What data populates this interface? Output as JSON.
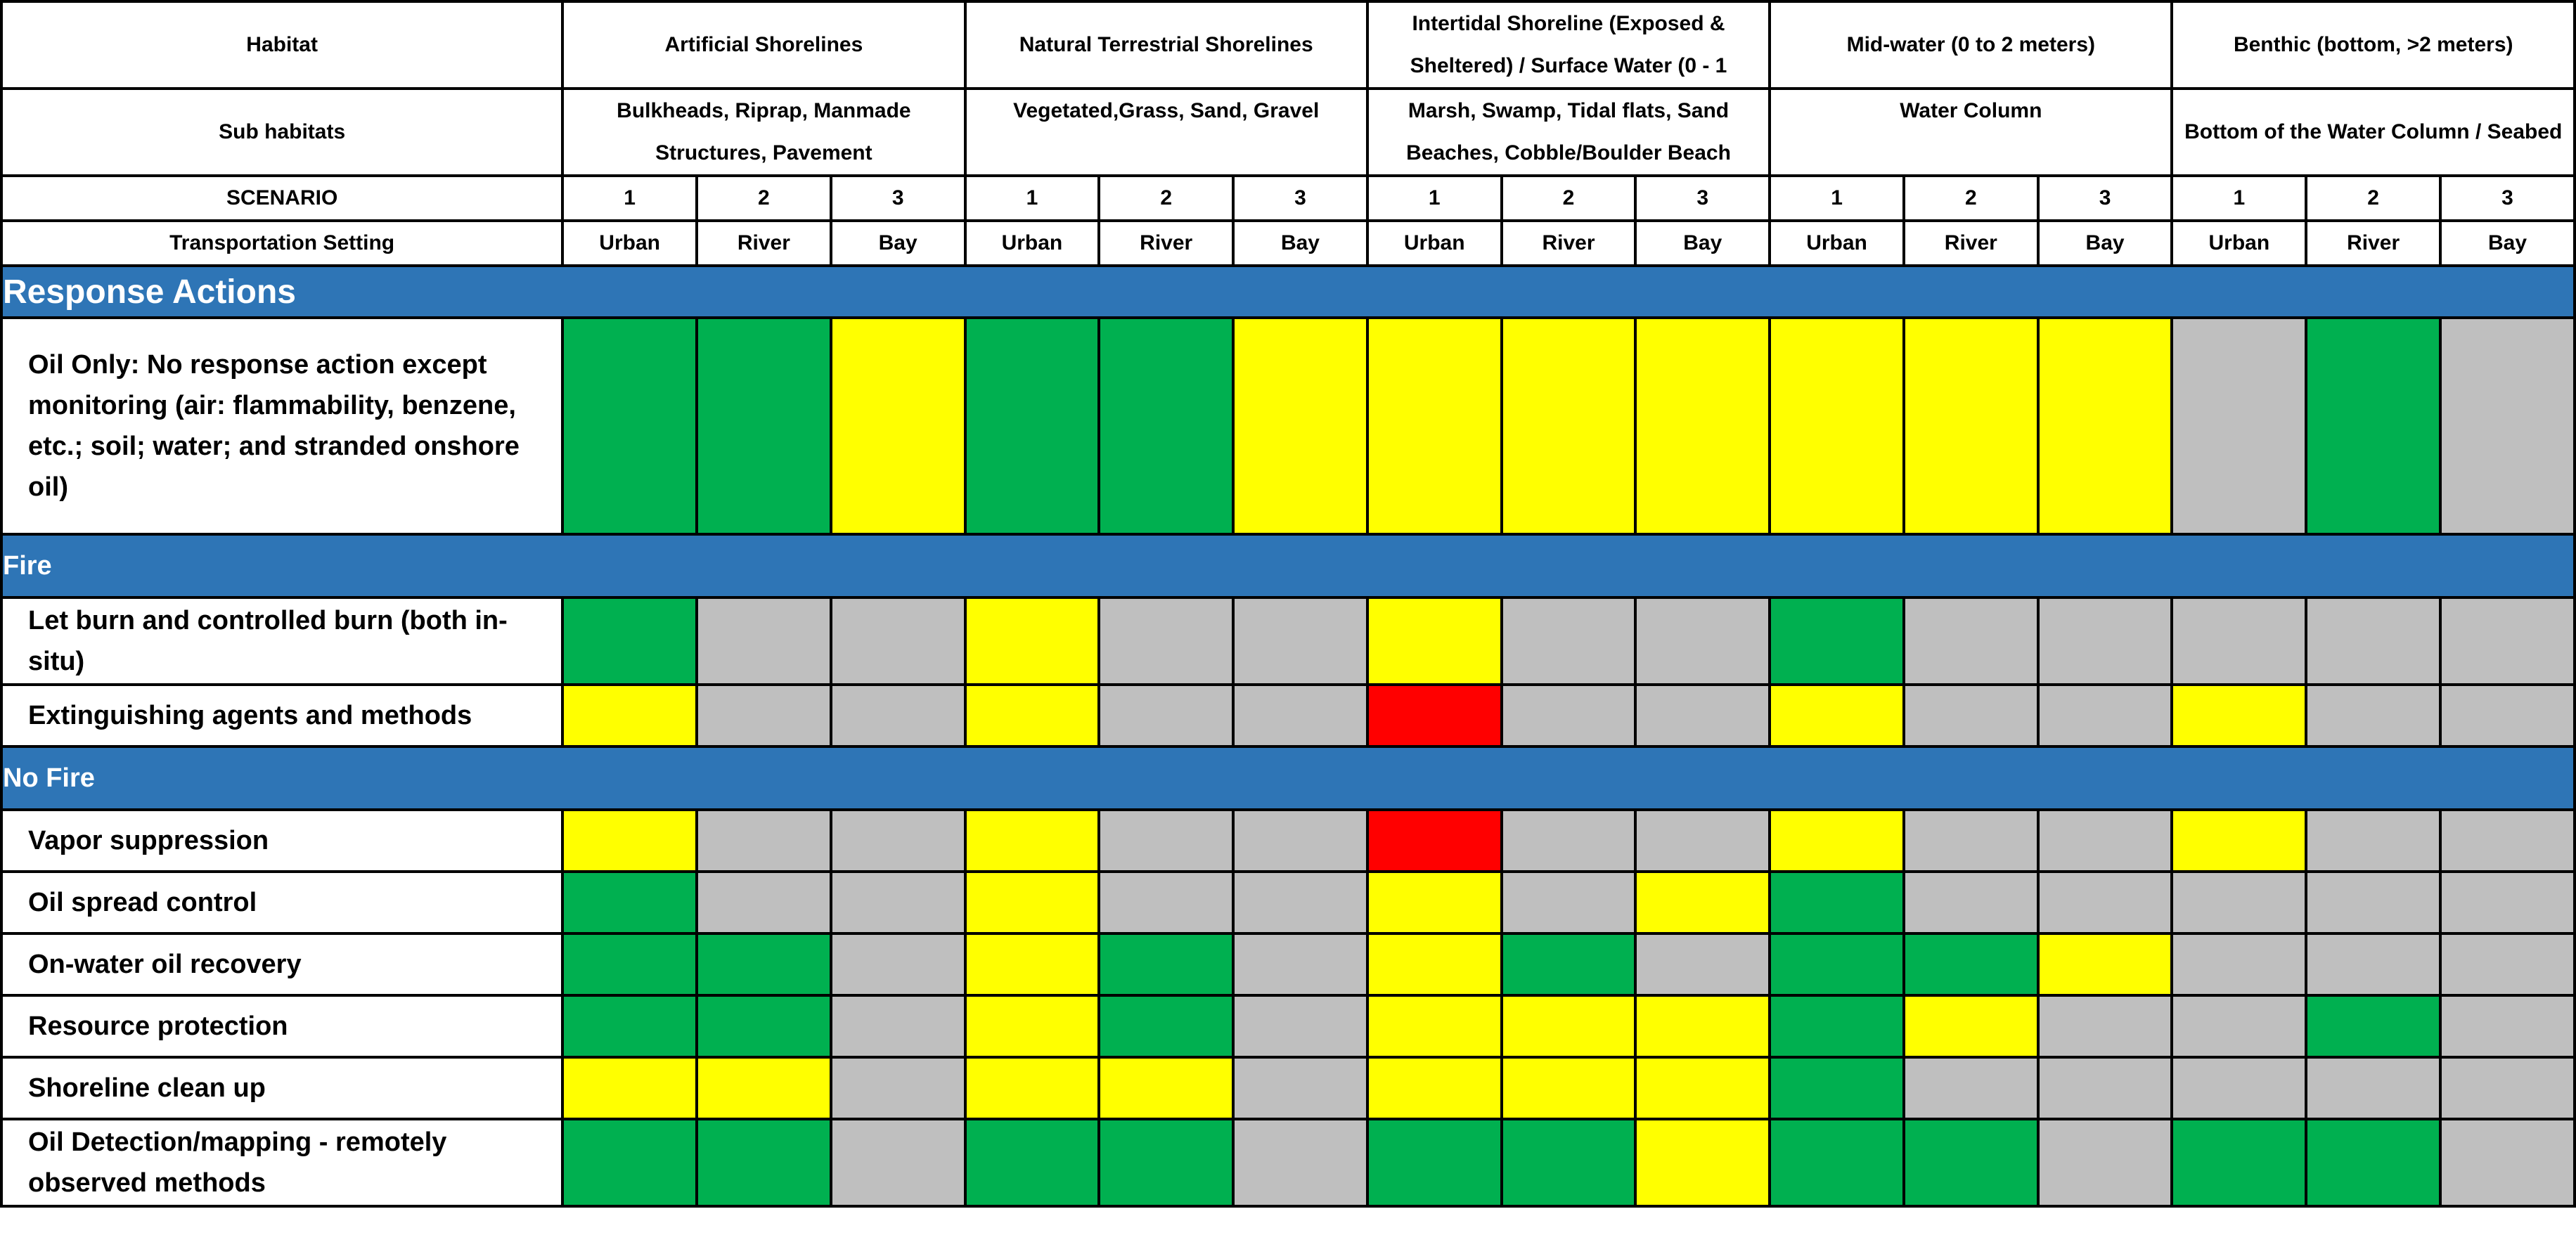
{
  "colors": {
    "green": "#00B050",
    "yellow": "#FFFF00",
    "gray": "#BFBFBF",
    "red": "#FF0000",
    "section_blue": "#2E75B6"
  },
  "header": {
    "habitat_label": "Habitat",
    "sub_habitats_label": "Sub habitats",
    "scenario_label": "SCENARIO",
    "transport_label": "Transportation Setting",
    "habitats": [
      {
        "name": "Artificial Shorelines",
        "sub": "Bulkheads, Riprap, Manmade Structures, Pavement"
      },
      {
        "name": "Natural Terrestrial Shorelines",
        "sub": "Vegetated,Grass, Sand, Gravel"
      },
      {
        "name": "Intertidal Shoreline (Exposed & Sheltered) / Surface Water (0 - 1",
        "sub": "Marsh, Swamp, Tidal flats, Sand Beaches, Cobble/Boulder Beach"
      },
      {
        "name": "Mid-water (0 to 2 meters)",
        "sub": "Water Column"
      },
      {
        "name": "Benthic (bottom, >2 meters)",
        "sub": "Bottom of the Water Column / Seabed"
      }
    ],
    "scenarios": [
      "1",
      "2",
      "3",
      "1",
      "2",
      "3",
      "1",
      "2",
      "3",
      "1",
      "2",
      "3",
      "1",
      "2",
      "3"
    ],
    "settings": [
      "Urban",
      "River",
      "Bay",
      "Urban",
      "River",
      "Bay",
      "Urban",
      "River",
      "Bay",
      "Urban",
      "River",
      "Bay",
      "Urban",
      "River",
      "Bay"
    ]
  },
  "sections": [
    {
      "title": "Response Actions",
      "style": "big",
      "rows": [
        {
          "label": "Oil Only: No response action except monitoring (air: flammability, benzene, etc.; soil;  water; and stranded onshore oil)",
          "cells": [
            "green",
            "green",
            "yellow",
            "green",
            "green",
            "yellow",
            "yellow",
            "yellow",
            "yellow",
            "yellow",
            "yellow",
            "yellow",
            "gray",
            "green",
            "gray"
          ]
        }
      ]
    },
    {
      "title": "Fire",
      "style": "small",
      "rows": [
        {
          "label": "Let burn and controlled burn (both in-situ)",
          "cells": [
            "green",
            "gray",
            "gray",
            "yellow",
            "gray",
            "gray",
            "yellow",
            "gray",
            "gray",
            "green",
            "gray",
            "gray",
            "gray",
            "gray",
            "gray"
          ]
        },
        {
          "label": "Extinguishing agents and methods",
          "cells": [
            "yellow",
            "gray",
            "gray",
            "yellow",
            "gray",
            "gray",
            "red",
            "gray",
            "gray",
            "yellow",
            "gray",
            "gray",
            "yellow",
            "gray",
            "gray"
          ]
        }
      ]
    },
    {
      "title": "No Fire",
      "style": "small",
      "rows": [
        {
          "label": "Vapor suppression",
          "cells": [
            "yellow",
            "gray",
            "gray",
            "yellow",
            "gray",
            "gray",
            "red",
            "gray",
            "gray",
            "yellow",
            "gray",
            "gray",
            "yellow",
            "gray",
            "gray"
          ]
        },
        {
          "label": "Oil spread control",
          "cells": [
            "green",
            "gray",
            "gray",
            "yellow",
            "gray",
            "gray",
            "yellow",
            "gray",
            "yellow",
            "green",
            "gray",
            "gray",
            "gray",
            "gray",
            "gray"
          ]
        },
        {
          "label": "On-water oil recovery",
          "cells": [
            "green",
            "green",
            "gray",
            "yellow",
            "green",
            "gray",
            "yellow",
            "green",
            "gray",
            "green",
            "green",
            "yellow",
            "gray",
            "gray",
            "gray"
          ]
        },
        {
          "label": "Resource protection",
          "cells": [
            "green",
            "green",
            "gray",
            "yellow",
            "green",
            "gray",
            "yellow",
            "yellow",
            "yellow",
            "green",
            "yellow",
            "gray",
            "gray",
            "green",
            "gray"
          ]
        },
        {
          "label": "Shoreline clean up",
          "cells": [
            "yellow",
            "yellow",
            "gray",
            "yellow",
            "yellow",
            "gray",
            "yellow",
            "yellow",
            "yellow",
            "green",
            "gray",
            "gray",
            "gray",
            "gray",
            "gray"
          ]
        },
        {
          "label": "Oil Detection/mapping - remotely observed methods",
          "cells": [
            "green",
            "green",
            "gray",
            "green",
            "green",
            "gray",
            "green",
            "green",
            "yellow",
            "green",
            "green",
            "gray",
            "green",
            "green",
            "gray"
          ]
        }
      ]
    }
  ]
}
